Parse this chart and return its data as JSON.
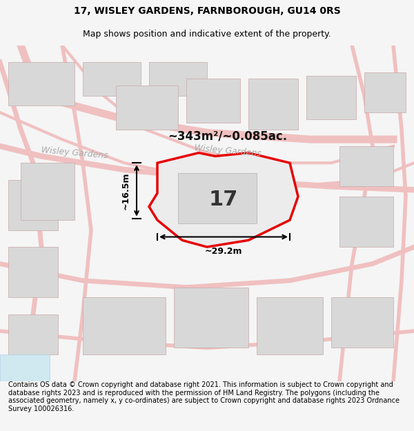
{
  "title_line1": "17, WISLEY GARDENS, FARNBOROUGH, GU14 0RS",
  "title_line2": "Map shows position and indicative extent of the property.",
  "footer_text": "Contains OS data © Crown copyright and database right 2021. This information is subject to Crown copyright and database rights 2023 and is reproduced with the permission of HM Land Registry. The polygons (including the associated geometry, namely x, y co-ordinates) are subject to Crown copyright and database rights 2023 Ordnance Survey 100026316.",
  "area_label": "~343m²/~0.085ac.",
  "width_label": "~29.2m",
  "height_label": "~16.5m",
  "plot_number": "17",
  "bg_color": "#f5f5f5",
  "map_bg": "#ffffff",
  "plot_fill": "#e8e8e8",
  "plot_border": "#e60000",
  "road_color": "#f0c0c0",
  "building_color": "#d8d8d8",
  "building_border": "#c8a8a8",
  "street_label1": "Wisley Gardens",
  "street_label2": "Wisley Gardens",
  "title_fontsize": 10,
  "subtitle_fontsize": 9,
  "footer_fontsize": 7,
  "label_fontsize": 11
}
